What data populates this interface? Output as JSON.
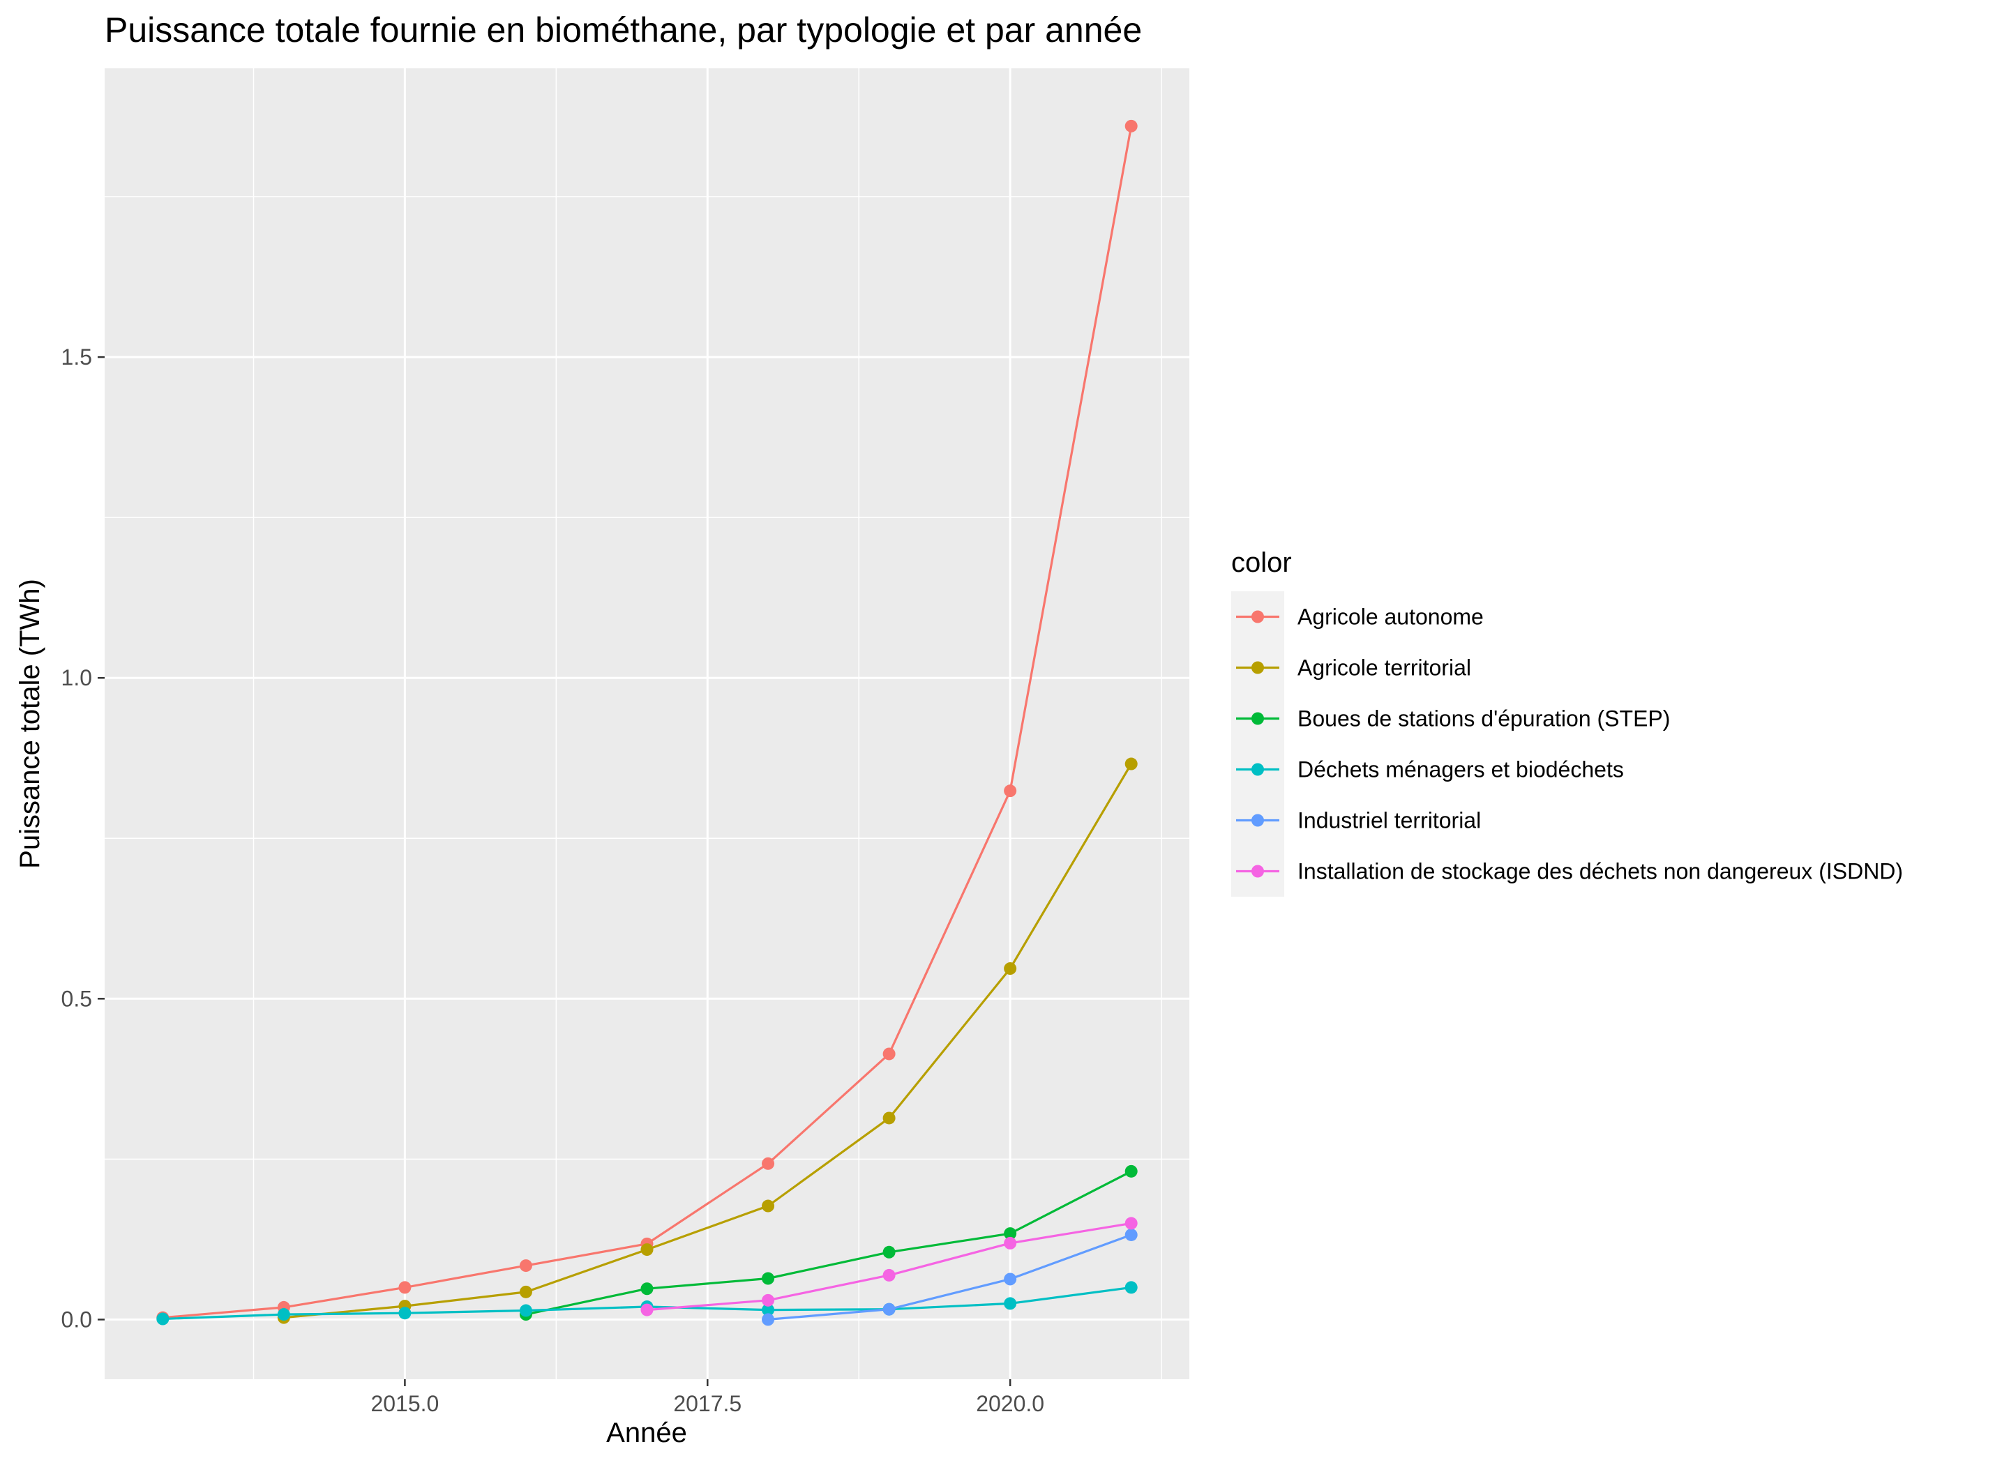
{
  "chart_data": {
    "type": "line",
    "title": "Puissance totale fournie en biométhane, par typologie et par année",
    "xlabel": "Année",
    "ylabel": "Puissance totale (TWh)",
    "xlim": [
      2012.52,
      2021.48
    ],
    "ylim": [
      -0.093,
      1.95
    ],
    "xticks": [
      2015.0,
      2017.5,
      2020.0
    ],
    "xtick_labels": [
      "2015.0",
      "2017.5",
      "2020.0"
    ],
    "yticks": [
      0.0,
      0.5,
      1.0,
      1.5
    ],
    "ytick_labels": [
      "0.0",
      "0.5",
      "1.0",
      "1.5"
    ],
    "grid": true,
    "legend_title": "color",
    "legend_position": "right",
    "series": [
      {
        "name": "Agricole autonome",
        "color": "#F8766D",
        "x": [
          2013,
          2014,
          2015,
          2016,
          2017,
          2018,
          2019,
          2020,
          2021
        ],
        "y": [
          0.003,
          0.019,
          0.05,
          0.084,
          0.118,
          0.243,
          0.414,
          0.824,
          1.86
        ]
      },
      {
        "name": "Agricole territorial",
        "color": "#B79F00",
        "x": [
          2014,
          2015,
          2016,
          2017,
          2018,
          2019,
          2020,
          2021
        ],
        "y": [
          0.003,
          0.021,
          0.043,
          0.109,
          0.177,
          0.314,
          0.547,
          0.866
        ]
      },
      {
        "name": "Boues de stations d'épuration (STEP)",
        "color": "#00BA38",
        "x": [
          2016,
          2017,
          2018,
          2019,
          2020,
          2021
        ],
        "y": [
          0.008,
          0.048,
          0.064,
          0.105,
          0.134,
          0.231
        ]
      },
      {
        "name": "Déchets ménagers et biodéchets",
        "color": "#00BFC4",
        "x": [
          2013,
          2014,
          2015,
          2016,
          2017,
          2018,
          2019,
          2020,
          2021
        ],
        "y": [
          0.001,
          0.008,
          0.01,
          0.014,
          0.02,
          0.015,
          0.016,
          0.025,
          0.05
        ]
      },
      {
        "name": "Industriel territorial",
        "color": "#619CFF",
        "x": [
          2018,
          2019,
          2020,
          2021
        ],
        "y": [
          0.0,
          0.016,
          0.063,
          0.132
        ]
      },
      {
        "name": "Installation de stockage des déchets non dangereux (ISDND)",
        "color": "#F564E3",
        "x": [
          2017,
          2018,
          2019,
          2020,
          2021
        ],
        "y": [
          0.015,
          0.03,
          0.069,
          0.119,
          0.15
        ]
      }
    ]
  }
}
